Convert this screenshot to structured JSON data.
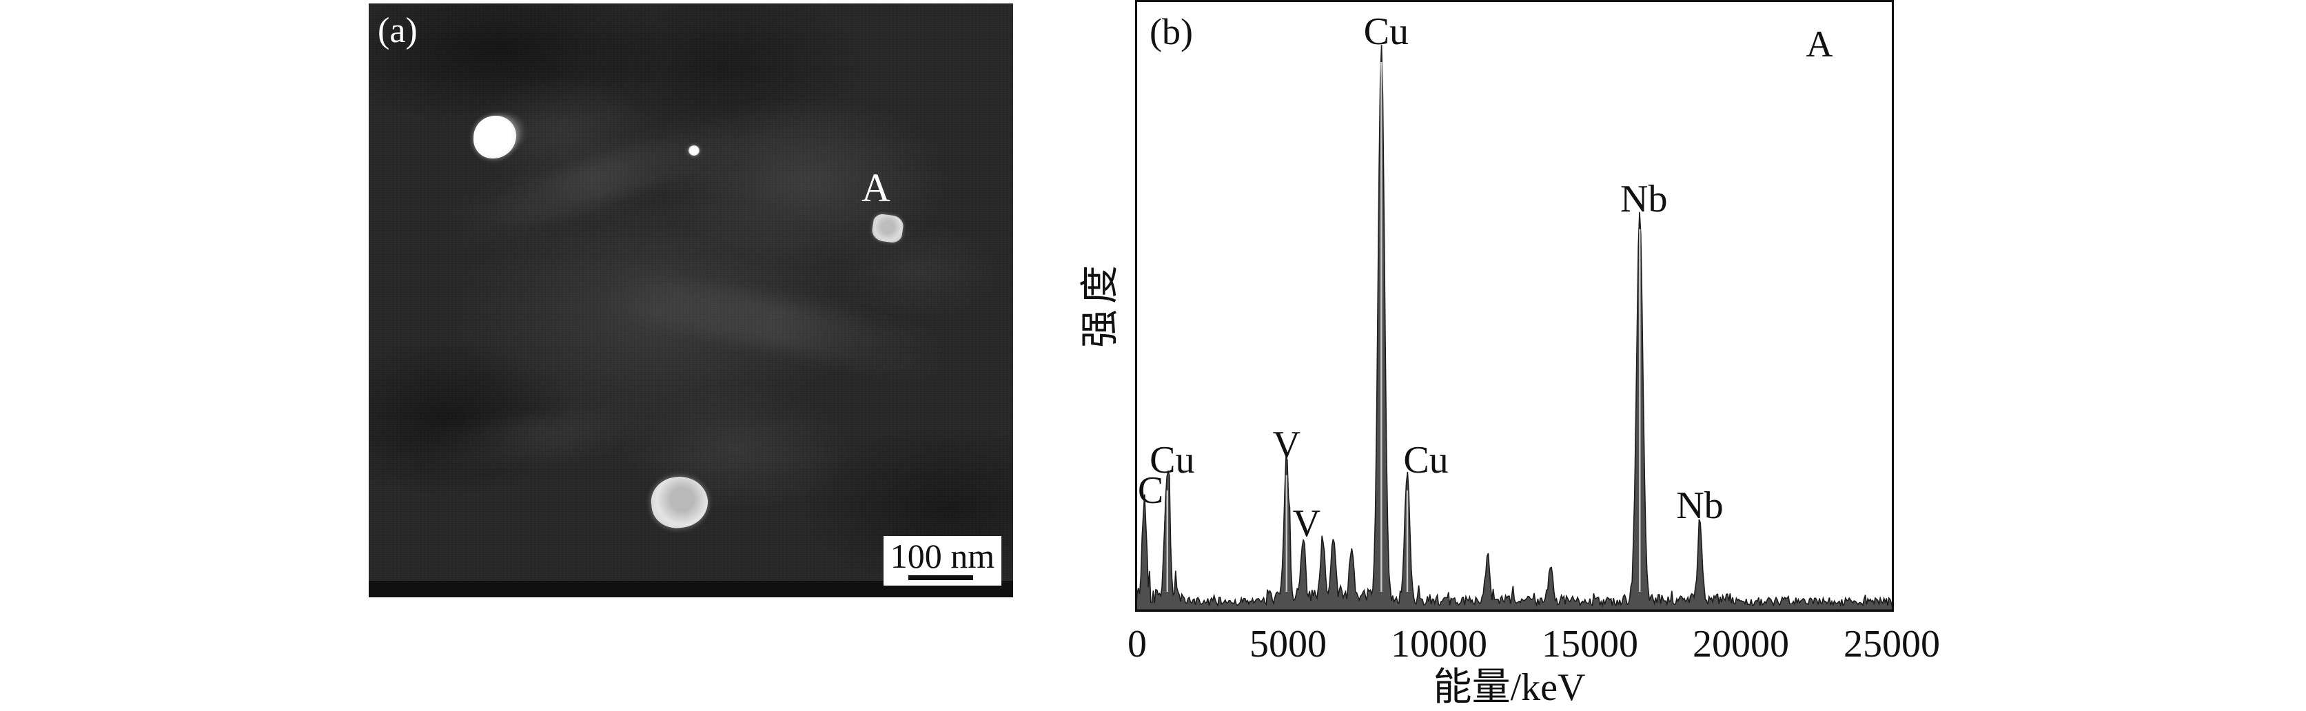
{
  "figure": {
    "panel_a": {
      "label": "(a)",
      "annotation": "A",
      "scale_bar_text": "100 nm",
      "content": "dark-field TEM micrograph with bright precipitate particles, particle A marked"
    },
    "panel_b": {
      "label": "(b)",
      "annotation": "A"
    }
  },
  "chart_data": {
    "type": "line",
    "title": "",
    "xlabel": "能量/keV",
    "ylabel": "强度",
    "xlim": [
      0,
      25000
    ],
    "x_ticks": [
      0,
      5000,
      10000,
      15000,
      20000,
      25000
    ],
    "y_axis_ticks": "none (arbitrary intensity units)",
    "grid": false,
    "legend": "none",
    "line_color": "#1c1c1c",
    "annotation_top_right": "A",
    "noise_floor_rel": 0.05,
    "peaks": [
      {
        "element": "C",
        "energy": 240,
        "rel_intensity": 0.16,
        "labeled": true,
        "label_dx": 9
      },
      {
        "element": "Cu",
        "energy": 1000,
        "rel_intensity": 0.21,
        "labeled": true,
        "label_dx": 7
      },
      {
        "element": "V",
        "energy": 4950,
        "rel_intensity": 0.235,
        "labeled": true,
        "label_dx": 0
      },
      {
        "element": "V",
        "energy": 5500,
        "rel_intensity": 0.105,
        "labeled": true,
        "label_dx": 5
      },
      {
        "element": null,
        "energy": 6150,
        "rel_intensity": 0.095,
        "labeled": false,
        "label_dx": 0
      },
      {
        "element": null,
        "energy": 6500,
        "rel_intensity": 0.1,
        "labeled": false,
        "label_dx": 0
      },
      {
        "element": null,
        "energy": 7100,
        "rel_intensity": 0.075,
        "labeled": false,
        "label_dx": 0
      },
      {
        "element": "Cu",
        "energy": 8090,
        "rel_intensity": 0.915,
        "labeled": true,
        "label_dx": 7
      },
      {
        "element": "Cu",
        "energy": 8950,
        "rel_intensity": 0.21,
        "labeled": true,
        "label_dx": 27
      },
      {
        "element": null,
        "energy": 11600,
        "rel_intensity": 0.065,
        "labeled": false,
        "label_dx": 0
      },
      {
        "element": null,
        "energy": 13700,
        "rel_intensity": 0.055,
        "labeled": false,
        "label_dx": 0
      },
      {
        "element": "Nb",
        "energy": 16650,
        "rel_intensity": 0.64,
        "labeled": true,
        "label_dx": 6
      },
      {
        "element": "Nb",
        "energy": 18640,
        "rel_intensity": 0.135,
        "labeled": true,
        "label_dx": 0
      }
    ]
  }
}
